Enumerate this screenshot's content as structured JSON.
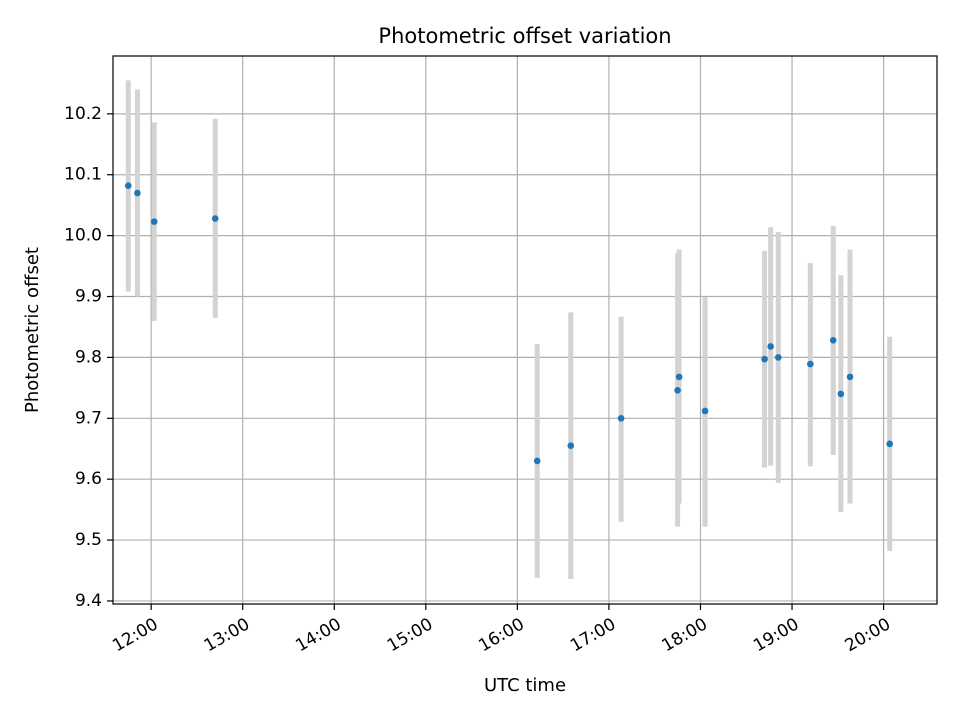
{
  "chart_data": {
    "type": "scatter",
    "title": "Photometric offset variation",
    "xlabel": "UTC time",
    "ylabel": "Photometric offset",
    "xlim": [
      "11:35",
      "20:35"
    ],
    "ylim": [
      9.395,
      10.295
    ],
    "x_ticks": [
      "12:00",
      "13:00",
      "14:00",
      "15:00",
      "16:00",
      "17:00",
      "18:00",
      "19:00",
      "20:00"
    ],
    "y_ticks": [
      "9.4",
      "9.5",
      "9.6",
      "9.7",
      "9.8",
      "9.9",
      "10.0",
      "10.1",
      "10.2"
    ],
    "grid": true,
    "marker_color": "#1f77b4",
    "errorbar_color": "#d3d3d3",
    "points": [
      {
        "x": "11:45",
        "y": 10.082,
        "ylo": 9.908,
        "yhi": 10.255
      },
      {
        "x": "11:51",
        "y": 10.07,
        "ylo": 9.9,
        "yhi": 10.24
      },
      {
        "x": "12:02",
        "y": 10.023,
        "ylo": 9.86,
        "yhi": 10.186
      },
      {
        "x": "12:42",
        "y": 10.028,
        "ylo": 9.865,
        "yhi": 10.192
      },
      {
        "x": "16:13",
        "y": 9.63,
        "ylo": 9.438,
        "yhi": 9.822
      },
      {
        "x": "16:35",
        "y": 9.655,
        "ylo": 9.436,
        "yhi": 9.874
      },
      {
        "x": "17:08",
        "y": 9.7,
        "ylo": 9.53,
        "yhi": 9.867
      },
      {
        "x": "17:45",
        "y": 9.746,
        "ylo": 9.522,
        "yhi": 9.971
      },
      {
        "x": "17:46",
        "y": 9.768,
        "ylo": 9.56,
        "yhi": 9.977
      },
      {
        "x": "18:03",
        "y": 9.712,
        "ylo": 9.522,
        "yhi": 9.899
      },
      {
        "x": "18:42",
        "y": 9.797,
        "ylo": 9.619,
        "yhi": 9.975
      },
      {
        "x": "18:46",
        "y": 9.818,
        "ylo": 9.622,
        "yhi": 10.014
      },
      {
        "x": "18:51",
        "y": 9.8,
        "ylo": 9.594,
        "yhi": 10.006
      },
      {
        "x": "19:12",
        "y": 9.789,
        "ylo": 9.621,
        "yhi": 9.955
      },
      {
        "x": "19:27",
        "y": 9.828,
        "ylo": 9.64,
        "yhi": 10.016
      },
      {
        "x": "19:32",
        "y": 9.74,
        "ylo": 9.546,
        "yhi": 9.935
      },
      {
        "x": "19:38",
        "y": 9.768,
        "ylo": 9.56,
        "yhi": 9.977
      },
      {
        "x": "20:04",
        "y": 9.658,
        "ylo": 9.482,
        "yhi": 9.834
      }
    ]
  }
}
